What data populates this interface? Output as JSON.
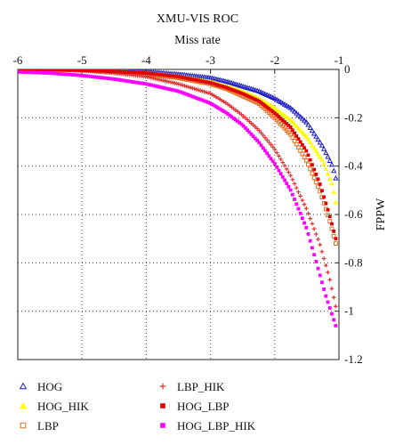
{
  "chart_data": {
    "type": "scatter",
    "title": "XMU-VIS ROC",
    "xlabel": "Miss rate",
    "ylabel": "FPPW",
    "xlim": [
      -6,
      -1
    ],
    "ylim": [
      -1.2,
      0
    ],
    "x_ticks": [
      -6,
      -5,
      -4,
      -3,
      -2,
      -1
    ],
    "y_ticks": [
      0,
      -0.2,
      -0.4,
      -0.6,
      -0.8,
      -1,
      -1.2
    ],
    "x_tick_labels": [
      "-6",
      "-5",
      "-4",
      "-3",
      "-2",
      "-1"
    ],
    "y_tick_labels": [
      "0",
      "-0.2",
      "-0.4",
      "-0.6",
      "-0.8",
      "-1",
      "-1.2"
    ],
    "x_axis_position": "top",
    "y_axis_position": "right",
    "grid": true,
    "legend_position": "bottom",
    "series": [
      {
        "name": "HOG",
        "marker": "triangle-open",
        "color": "#2020c8",
        "x": [
          -6,
          -5.5,
          -5,
          -4.5,
          -4,
          -3.5,
          -3,
          -2.75,
          -2.5,
          -2.25,
          -2,
          -1.75,
          -1.5,
          -1.25,
          -1.1,
          -1.05
        ],
        "y": [
          0,
          0,
          0,
          -0.005,
          -0.01,
          -0.02,
          -0.035,
          -0.05,
          -0.07,
          -0.09,
          -0.12,
          -0.16,
          -0.22,
          -0.32,
          -0.4,
          -0.45
        ]
      },
      {
        "name": "HOG_HIK",
        "marker": "triangle-filled",
        "color": "#ffff00",
        "x": [
          -6,
          -5.5,
          -5,
          -4.5,
          -4,
          -3.5,
          -3,
          -2.75,
          -2.5,
          -2.25,
          -2,
          -1.75,
          -1.5,
          -1.25,
          -1.1,
          -1.05
        ],
        "y": [
          0,
          0,
          -0.003,
          -0.008,
          -0.015,
          -0.03,
          -0.05,
          -0.07,
          -0.09,
          -0.12,
          -0.16,
          -0.21,
          -0.28,
          -0.38,
          -0.48,
          -0.55
        ]
      },
      {
        "name": "LBP",
        "marker": "square-open",
        "color": "#e07020",
        "x": [
          -6,
          -5.5,
          -5,
          -4.5,
          -4,
          -3.5,
          -3,
          -2.75,
          -2.5,
          -2.25,
          -2,
          -1.75,
          -1.5,
          -1.3,
          -1.15,
          -1.05
        ],
        "y": [
          0,
          0,
          -0.003,
          -0.01,
          -0.02,
          -0.035,
          -0.06,
          -0.08,
          -0.11,
          -0.14,
          -0.2,
          -0.27,
          -0.38,
          -0.5,
          -0.62,
          -0.72
        ]
      },
      {
        "name": "LBP_HIK",
        "marker": "plus",
        "color": "#e03030",
        "x": [
          -6,
          -5.5,
          -5,
          -4.5,
          -4,
          -3.5,
          -3,
          -2.75,
          -2.5,
          -2.25,
          -2,
          -1.75,
          -1.5,
          -1.3,
          -1.15,
          -1.05
        ],
        "y": [
          0,
          0,
          -0.005,
          -0.015,
          -0.03,
          -0.06,
          -0.1,
          -0.14,
          -0.19,
          -0.25,
          -0.33,
          -0.44,
          -0.58,
          -0.72,
          -0.86,
          -0.98
        ]
      },
      {
        "name": "HOG_LBP",
        "marker": "square-filled",
        "color": "#e00000",
        "x": [
          -6,
          -5.5,
          -5,
          -4.5,
          -4,
          -3.5,
          -3,
          -2.75,
          -2.5,
          -2.25,
          -2,
          -1.75,
          -1.5,
          -1.3,
          -1.15,
          -1.05
        ],
        "y": [
          0,
          0,
          -0.003,
          -0.008,
          -0.015,
          -0.03,
          -0.055,
          -0.075,
          -0.1,
          -0.13,
          -0.18,
          -0.24,
          -0.34,
          -0.47,
          -0.6,
          -0.7
        ]
      },
      {
        "name": "HOG_LBP_HIK",
        "marker": "square-filled",
        "color": "#ff00ff",
        "x": [
          -6,
          -5.5,
          -5,
          -4.5,
          -4,
          -3.5,
          -3,
          -2.75,
          -2.5,
          -2.25,
          -2,
          -1.75,
          -1.5,
          -1.35,
          -1.2,
          -1.1,
          -1.05
        ],
        "y": [
          -0.01,
          -0.015,
          -0.025,
          -0.04,
          -0.06,
          -0.09,
          -0.14,
          -0.18,
          -0.23,
          -0.3,
          -0.39,
          -0.5,
          -0.66,
          -0.8,
          -0.94,
          -1.02,
          -1.06
        ]
      }
    ]
  }
}
